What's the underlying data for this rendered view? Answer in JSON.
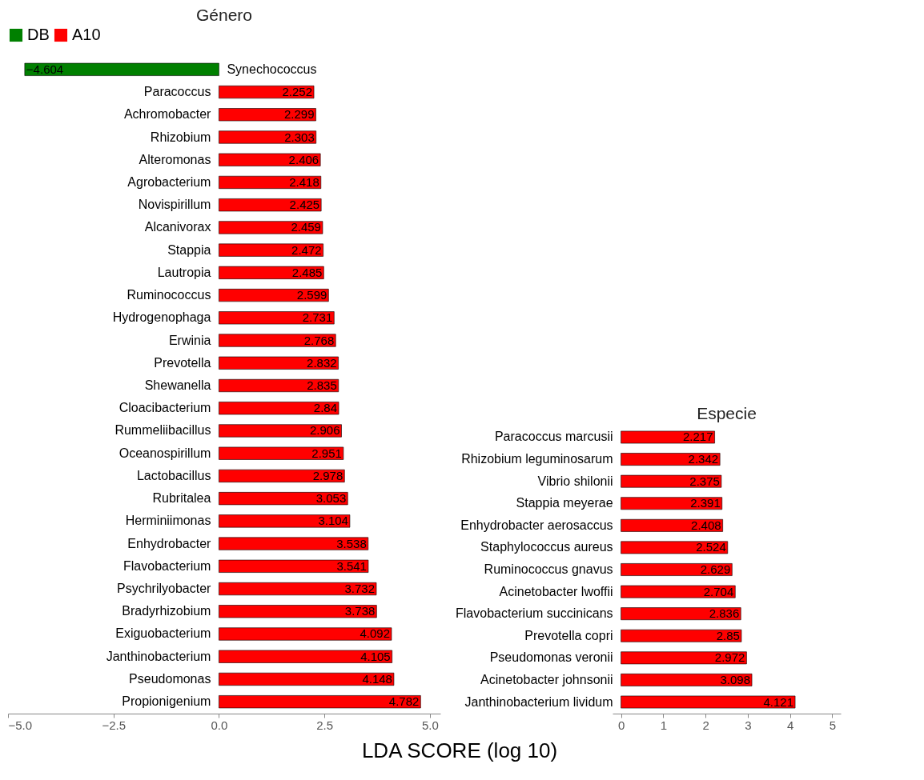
{
  "chart_data": [
    {
      "type": "bar",
      "orientation": "horizontal",
      "title": "Género",
      "xlabel": "LDA SCORE (log 10)",
      "legend": "top left",
      "data_labels": true,
      "categories": [
        "Synechococcus",
        "Paracoccus",
        "Achromobacter",
        "Rhizobium",
        "Alteromonas",
        "Agrobacterium",
        "Novispirillum",
        "Alcanivorax",
        "Stappia",
        "Lautropia",
        "Ruminococcus",
        "Hydrogenophaga",
        "Erwinia",
        "Prevotella",
        "Shewanella",
        "Cloacibacterium",
        "Rummeliibacillus",
        "Oceanospirillum",
        "Lactobacillus",
        "Rubritalea",
        "Herminiimonas",
        "Enhydrobacter",
        "Flavobacterium",
        "Psychrilyobacter",
        "Bradyrhizobium",
        "Exiguobacterium",
        "Janthinobacterium",
        "Pseudomonas",
        "Propionigenium"
      ],
      "series": [
        {
          "name": "DB",
          "color": "#008000",
          "values": [
            -4.604,
            null,
            null,
            null,
            null,
            null,
            null,
            null,
            null,
            null,
            null,
            null,
            null,
            null,
            null,
            null,
            null,
            null,
            null,
            null,
            null,
            null,
            null,
            null,
            null,
            null,
            null,
            null,
            null
          ]
        },
        {
          "name": "A10",
          "color": "#ff0000",
          "values": [
            null,
            2.252,
            2.299,
            2.303,
            2.406,
            2.418,
            2.425,
            2.459,
            2.472,
            2.485,
            2.599,
            2.731,
            2.768,
            2.832,
            2.835,
            2.84,
            2.906,
            2.951,
            2.978,
            3.053,
            3.104,
            3.538,
            3.541,
            3.732,
            3.738,
            4.092,
            4.105,
            4.148,
            4.782
          ]
        }
      ],
      "xlim": [
        -5,
        5.25
      ],
      "xticks": [
        {
          "value": -5,
          "label": "−5.0"
        },
        {
          "value": -2.5,
          "label": "−2.5"
        },
        {
          "value": 0,
          "label": "0.0"
        },
        {
          "value": 2.5,
          "label": "2.5"
        },
        {
          "value": 5,
          "label": "5.0"
        }
      ]
    },
    {
      "type": "bar",
      "orientation": "horizontal",
      "title": "Especie",
      "data_labels": true,
      "color": "#ff0000",
      "categories": [
        "Paracoccus marcusii",
        "Rhizobium leguminosarum",
        "Vibrio shilonii",
        "Stappia meyerae",
        "Enhydrobacter aerosaccus",
        "Staphylococcus aureus",
        "Ruminococcus gnavus",
        "Acinetobacter lwoffii",
        "Flavobacterium succinicans",
        "Prevotella copri",
        "Pseudomonas veronii",
        "Acinetobacter johnsonii",
        "Janthinobacterium lividum"
      ],
      "values": [
        2.217,
        2.342,
        2.375,
        2.391,
        2.408,
        2.524,
        2.629,
        2.704,
        2.836,
        2.85,
        2.972,
        3.098,
        4.121
      ],
      "xlim": [
        -0.2,
        5.2
      ],
      "xticks": [
        0,
        1,
        2,
        3,
        4,
        5
      ]
    }
  ]
}
